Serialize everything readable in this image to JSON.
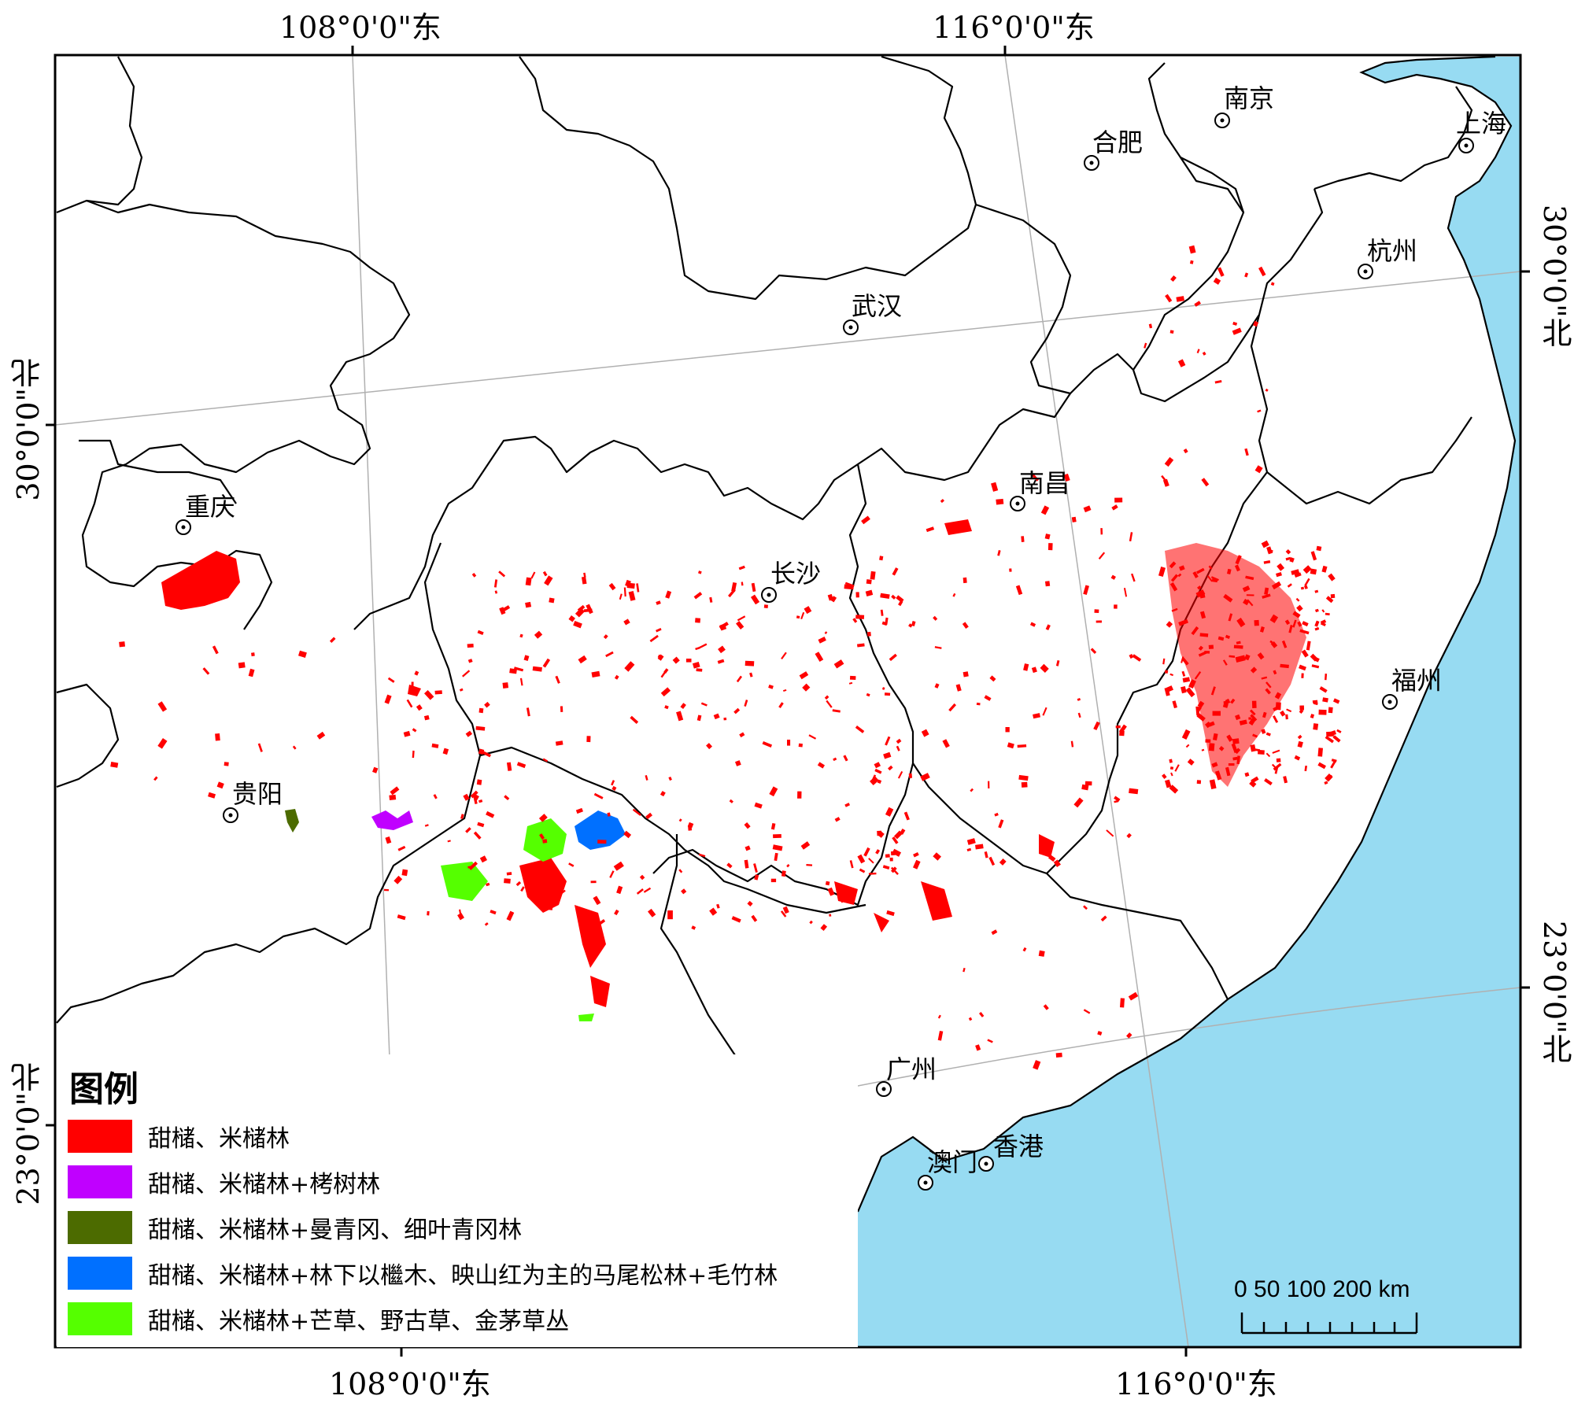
{
  "coords": {
    "top": [
      "108°0'0\"东",
      "116°0'0\"东"
    ],
    "bottom": [
      "108°0'0\"东",
      "116°0'0\"东"
    ],
    "left": [
      "30°0'0\"北",
      "23°0'0\"北"
    ],
    "right": [
      "30°0'0\"北",
      "23°0'0\"北"
    ]
  },
  "cities": [
    {
      "name": "南京"
    },
    {
      "name": "合肥"
    },
    {
      "name": "上海"
    },
    {
      "name": "杭州"
    },
    {
      "name": "武汉"
    },
    {
      "name": "南昌"
    },
    {
      "name": "重庆"
    },
    {
      "name": "长沙"
    },
    {
      "name": "福州"
    },
    {
      "name": "贵阳"
    },
    {
      "name": "广州"
    },
    {
      "name": "澳门"
    },
    {
      "name": "香港"
    }
  ],
  "legend": {
    "title": "图例",
    "items": [
      {
        "label": "甜槠、米槠林",
        "color": "#ff0000"
      },
      {
        "label": "甜槠、米槠林+栲树林",
        "color": "#c000ff"
      },
      {
        "label": "甜槠、米槠林+曼青冈、细叶青冈林",
        "color": "#4c6b00"
      },
      {
        "label": "甜槠、米槠林+林下以檵木、映山红为主的马尾松林+毛竹林",
        "color": "#0070ff"
      },
      {
        "label": "甜槠、米槠林+芒草、野古草、金茅草丛",
        "color": "#55ff00"
      }
    ]
  },
  "scale_bar": {
    "label": "0  50 100       200 km"
  },
  "colors": {
    "sea": "#97dbf2",
    "border": "#000000",
    "graticule": "#b0b0b0"
  }
}
